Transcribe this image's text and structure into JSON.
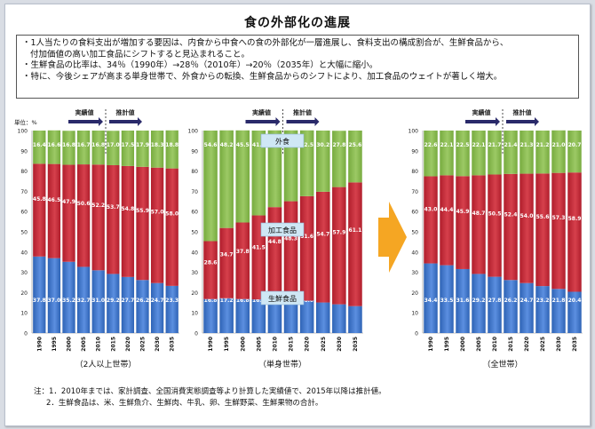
{
  "title": "食の外部化の進展",
  "summary": {
    "bullet1_line1": "・1人当たりの食料支出が増加する要因は、内食から中食への食の外部化が一層進展し、食料支出の構成割合が、生鮮食品から、",
    "bullet1_line2": "付加価値の高い加工食品にシフトすると見込まれること。",
    "bullet2": "・生鮮食品の比率は、34％（1990年）→28％（2010年）→20％（2035年）と大幅に縮小。",
    "bullet3": "・特に、今後シェアが高まる単身世帯で、外食からの転換、生鮮食品からのシフトにより、加工食品のウェイトが著しく増大。"
  },
  "unit_label": "単位：%",
  "actual_label": "実績値",
  "projection_label": "推計値",
  "notes": {
    "line1": "注：1．2010年までは、家計調査、全国消費実態調査等より計算した実績値で、2015年以降は推計値。",
    "line2": "2．生鮮食品は、米、生鮮魚介、生鮮肉、牛乳、卵、生鮮野菜、生鮮果物の合計。"
  },
  "colors": {
    "fresh": "#2e63b5",
    "processed": "#b01e2c",
    "dining": "#77ab3f",
    "arrow": "#f5a623",
    "label_bg": "#cfe7f5"
  },
  "chart_data": [
    {
      "type": "bar",
      "stacked": true,
      "title": "（2人以上世帯）",
      "categories": [
        "1990",
        "1995",
        "2000",
        "2005",
        "2010",
        "2015",
        "2020",
        "2025",
        "2030",
        "2035"
      ],
      "series": [
        {
          "name": "生鮮食品",
          "values": [
            37.8,
            37.0,
            35.2,
            32.7,
            31.0,
            29.2,
            27.7,
            26.2,
            24.7,
            23.3
          ]
        },
        {
          "name": "加工食品",
          "values": [
            45.8,
            46.5,
            47.9,
            50.6,
            52.2,
            53.7,
            54.8,
            55.9,
            57.0,
            58.0
          ]
        },
        {
          "name": "外食",
          "values": [
            16.4,
            16.6,
            16.8,
            16.7,
            16.8,
            17.0,
            17.5,
            17.9,
            18.3,
            18.8
          ]
        }
      ],
      "ylim": [
        0,
        100
      ],
      "yticks": [
        "0",
        "10",
        "20",
        "30",
        "40",
        "50",
        "60",
        "70",
        "80",
        "90",
        "100"
      ]
    },
    {
      "type": "bar",
      "stacked": true,
      "title": "（単身世帯）",
      "categories": [
        "1990",
        "1995",
        "2000",
        "2005",
        "2010",
        "2015",
        "2020",
        "2025",
        "2030",
        "2035"
      ],
      "series": [
        {
          "name": "生鮮食品",
          "values": [
            16.8,
            17.2,
            16.8,
            16.6,
            17.4,
            16.8,
            16.0,
            15.1,
            14.2,
            13.3
          ]
        },
        {
          "name": "加工食品",
          "values": [
            28.6,
            34.7,
            37.8,
            41.5,
            44.8,
            48.3,
            51.6,
            54.7,
            57.9,
            61.1
          ]
        },
        {
          "name": "外食",
          "values": [
            54.6,
            48.2,
            45.5,
            41.9,
            37.9,
            35.0,
            32.5,
            30.2,
            27.8,
            25.6
          ]
        }
      ],
      "series_labels": [
        "生鮮食品",
        "加工食品",
        "外食"
      ],
      "ylim": [
        0,
        100
      ],
      "yticks": [
        "0",
        "10",
        "20",
        "30",
        "40",
        "50",
        "60",
        "70",
        "80",
        "90",
        "100"
      ]
    },
    {
      "type": "bar",
      "stacked": true,
      "title": "（全世帯）",
      "categories": [
        "1990",
        "1995",
        "2000",
        "2005",
        "2010",
        "2015",
        "2020",
        "2025",
        "2030",
        "2035"
      ],
      "series": [
        {
          "name": "生鮮食品",
          "values": [
            34.4,
            33.5,
            31.6,
            29.2,
            27.8,
            26.2,
            24.7,
            23.2,
            21.8,
            20.4
          ]
        },
        {
          "name": "加工食品",
          "values": [
            43.0,
            44.4,
            45.9,
            48.7,
            50.5,
            52.4,
            54.0,
            55.6,
            57.3,
            58.9
          ]
        },
        {
          "name": "外食",
          "values": [
            22.6,
            22.1,
            22.5,
            22.1,
            21.7,
            21.4,
            21.3,
            21.2,
            21.0,
            20.7
          ]
        }
      ],
      "ylim": [
        0,
        100
      ],
      "yticks": [
        "0",
        "10",
        "20",
        "30",
        "40",
        "50",
        "60",
        "70",
        "80",
        "90",
        "100"
      ]
    }
  ]
}
